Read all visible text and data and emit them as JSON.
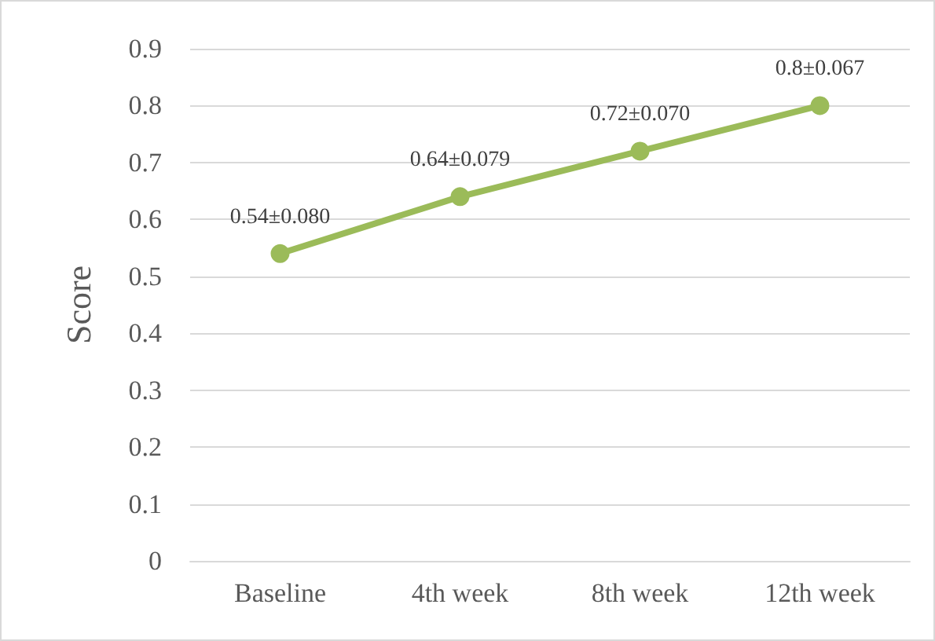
{
  "chart_data": {
    "type": "line",
    "ylabel": "Score",
    "categories": [
      "Baseline",
      "4th week",
      "8th week",
      "12th week"
    ],
    "series": [
      {
        "color": "#9bbb59",
        "values": [
          0.54,
          0.64,
          0.72,
          0.8
        ],
        "value_labels": [
          "0.54±0.080",
          "0.64±0.079",
          "0.72±0.070",
          "0.8±0.067"
        ]
      }
    ],
    "ylim": [
      0,
      0.9
    ],
    "yticks": [
      0,
      0.1,
      0.2,
      0.3,
      0.4,
      0.5,
      0.6,
      0.7,
      0.8,
      0.9
    ],
    "grid": "y",
    "marker": "circle",
    "line_style": "solid"
  }
}
